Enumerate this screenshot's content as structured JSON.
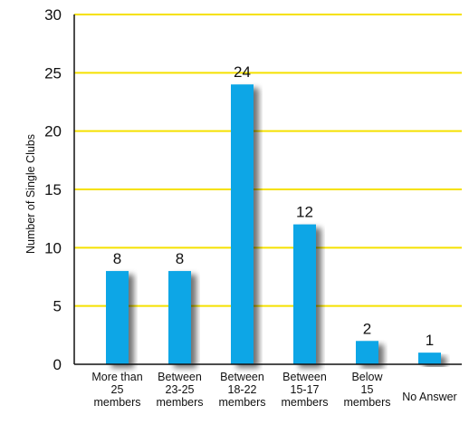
{
  "chart_data": {
    "type": "bar",
    "title": "",
    "xlabel": "",
    "ylabel": "Number of Single Clubs",
    "ylim": [
      0,
      30
    ],
    "yticks": [
      0,
      5,
      10,
      15,
      20,
      25,
      30
    ],
    "grid": true,
    "categories": [
      [
        "More than",
        "25",
        "members"
      ],
      [
        "Between",
        "23-25",
        "members"
      ],
      [
        "Between",
        "18-22",
        "members"
      ],
      [
        "Between",
        "15-17",
        "members"
      ],
      [
        "Below",
        "15",
        "members"
      ],
      [
        "No Answer"
      ]
    ],
    "values": [
      8,
      8,
      24,
      12,
      2,
      1
    ],
    "data_labels": [
      "8",
      "8",
      "24",
      "12",
      "2",
      "1"
    ],
    "colors": {
      "bar": "#0aa6e6",
      "grid": "#f5e100",
      "axis": "#111111"
    }
  }
}
